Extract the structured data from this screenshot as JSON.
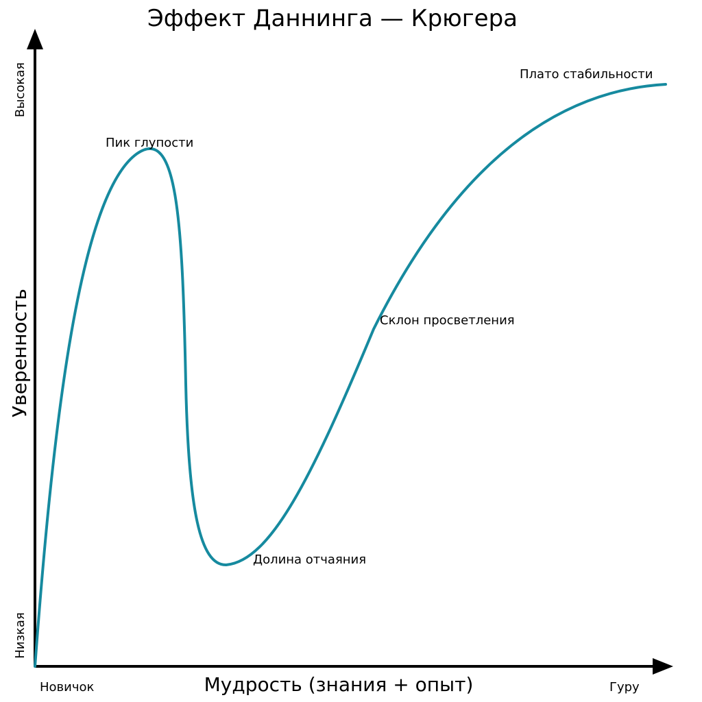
{
  "title": "Эффект Даннинга — Крюгера",
  "axes": {
    "x": {
      "title": "Мудрость (знания + опыт)",
      "start_label": "Новичок",
      "end_label": "Гуру"
    },
    "y": {
      "title": "Уверенность",
      "start_label": "Низкая",
      "end_label": "Высокая"
    }
  },
  "annotations": {
    "peak": "Пик глупости",
    "valley": "Долина отчаяния",
    "slope": "Склон просветления",
    "plateau": "Плато стабильности"
  },
  "curve": {
    "color": "#168a9f"
  }
}
